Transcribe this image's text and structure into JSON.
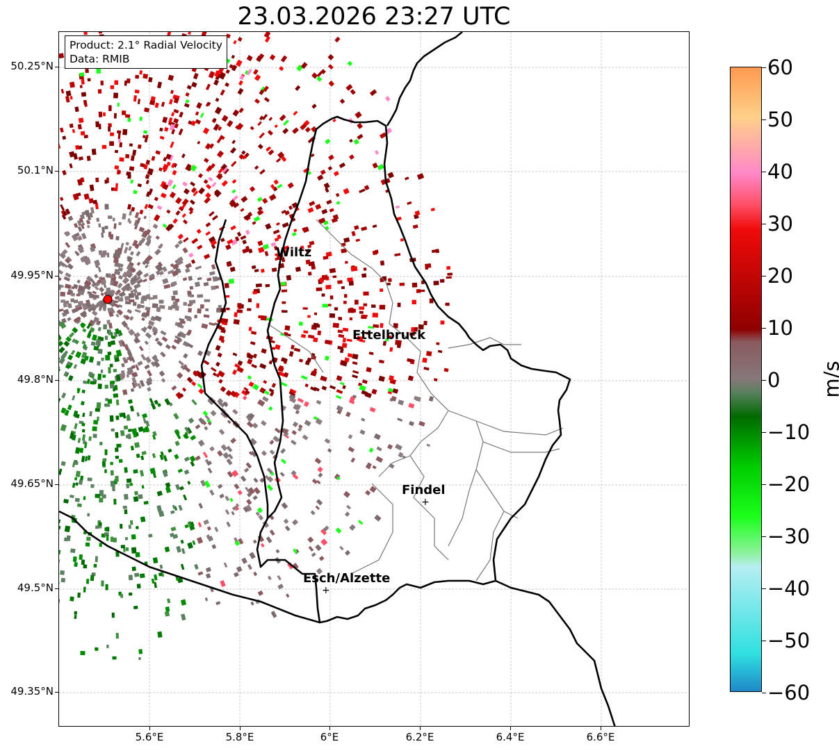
{
  "title": "23.03.2026 23:27 UTC",
  "info": {
    "product": "Product: 2.1° Radial Velocity",
    "data_source": "Data: RMIB"
  },
  "axes": {
    "y_ticks": [
      "50.25°N",
      "50.1°N",
      "49.95°N",
      "49.8°N",
      "49.65°N",
      "49.5°N",
      "49.35°N"
    ],
    "x_ticks": [
      "5.6°E",
      "5.8°E",
      "6°E",
      "6.2°E",
      "6.4°E",
      "6.6°E"
    ]
  },
  "cities": [
    {
      "name": "Wiltz"
    },
    {
      "name": "Ettelbruck"
    },
    {
      "name": "Findel"
    },
    {
      "name": "Esch/Alzette"
    }
  ],
  "colorbar": {
    "unit": "m/s",
    "min": -60,
    "max": 60,
    "ticks": [
      "60",
      "50",
      "40",
      "30",
      "20",
      "10",
      "0",
      "−10",
      "−20",
      "−30",
      "−40",
      "−50",
      "−60"
    ],
    "colors": {
      "orange": "#ff9a4f",
      "light_orange": "#ffd08a",
      "pink": "#ff88c8",
      "red": "#ff4f66",
      "bright_red": "#f00a0a",
      "dark_red": "#8f0000",
      "brown_gray": "#8a5a5f",
      "gray": "#85787a",
      "gray_green": "#5b8060",
      "dark_green": "#006a00",
      "green": "#00cc00",
      "bright_green": "#1bff1b",
      "light_green": "#90f2a0",
      "light_cyan": "#b6eef2",
      "cyan": "#30e0e0",
      "blue": "#1e88c8"
    }
  },
  "radar_site": {
    "color": "#ff0000"
  }
}
